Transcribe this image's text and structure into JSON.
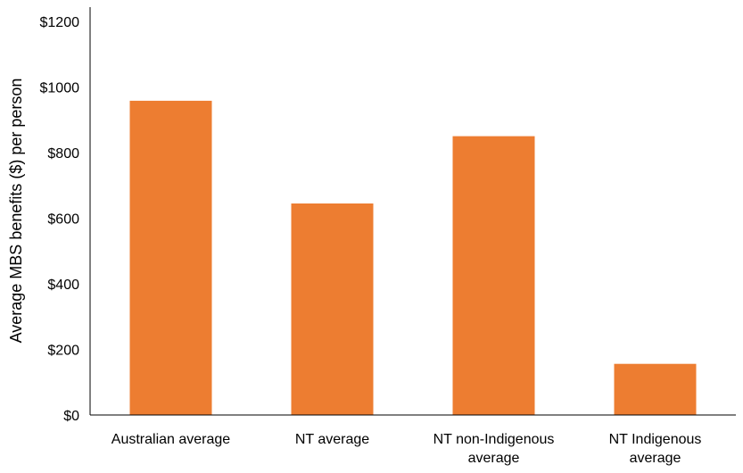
{
  "chart_data": {
    "type": "bar",
    "title": "",
    "xlabel": "",
    "ylabel": "Average MBS benefits ($) per person",
    "categories": [
      [
        "Australian average"
      ],
      [
        "NT average"
      ],
      [
        "NT non-Indigenous",
        "average"
      ],
      [
        "NT Indigenous",
        "average"
      ]
    ],
    "values": [
      958,
      645,
      850,
      156
    ],
    "ylim": [
      0,
      1200
    ],
    "yticks": [
      {
        "value": 0,
        "label": "$0"
      },
      {
        "value": 200,
        "label": "$200"
      },
      {
        "value": 400,
        "label": "$400"
      },
      {
        "value": 600,
        "label": "$600"
      },
      {
        "value": 800,
        "label": "$800"
      },
      {
        "value": 1000,
        "label": "$1000"
      },
      {
        "value": 1200,
        "label": "$1200"
      }
    ],
    "bar_color": "#ED7D31",
    "grid": false,
    "legend": "none"
  }
}
